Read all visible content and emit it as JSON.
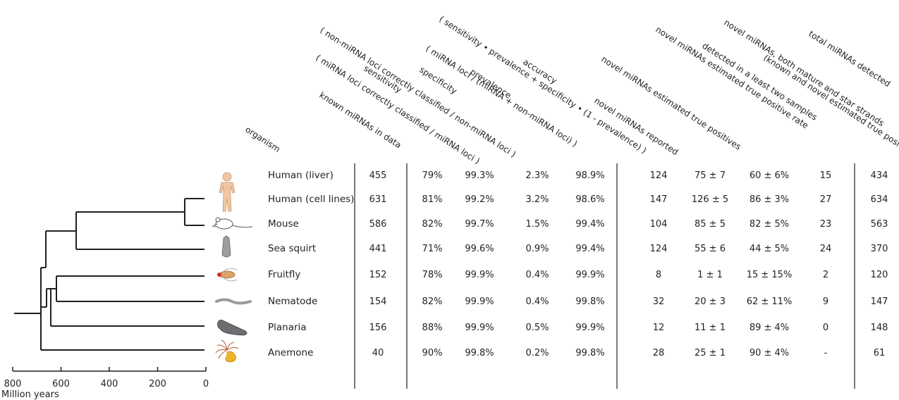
{
  "headers": [
    {
      "key": "organism",
      "lines": [
        "organism"
      ]
    },
    {
      "key": "known",
      "lines": [
        "known miRNAs in data"
      ]
    },
    {
      "key": "sensitivity",
      "lines": [
        "sensitivity",
        "( miRNA loci correctly classified / miRNA loci )"
      ]
    },
    {
      "key": "specificity",
      "lines": [
        "specificity",
        "( non-miRNA loci correctly classified / non-miRNA loci )"
      ]
    },
    {
      "key": "prevalence",
      "lines": [
        "prevalence",
        "( miRNA loci / (miRNA + non-miRNA loci) )"
      ]
    },
    {
      "key": "accuracy",
      "lines": [
        "accuracy",
        "( sensitivity • prevalence + specificity • (1 - prevalence) )"
      ]
    },
    {
      "key": "novel_reported",
      "lines": [
        "novel miRNAs reported"
      ]
    },
    {
      "key": "novel_tp",
      "lines": [
        "novel miRNAs estimated true positives"
      ]
    },
    {
      "key": "novel_tpr",
      "lines": [
        "novel miRNAs estimated true positive rate"
      ]
    },
    {
      "key": "novel_both",
      "lines": [
        "novel miRNAs, both mature and star strands",
        "detected in a least two samples"
      ]
    },
    {
      "key": "total",
      "lines": [
        "total miRNAs detected",
        "(known and novel estimated true positives)"
      ]
    }
  ],
  "rows": [
    {
      "organism": "Human (liver)",
      "icon": "human-icon",
      "known": "455",
      "sensitivity": "79%",
      "specificity": "99.3%",
      "prevalence": "2.3%",
      "accuracy": "98.9%",
      "novel_reported": "124",
      "novel_tp": "75 ± 7",
      "novel_tpr": "60 ± 6%",
      "novel_both": "15",
      "total": "434"
    },
    {
      "organism": "Human (cell lines)",
      "icon": "",
      "known": "631",
      "sensitivity": "81%",
      "specificity": "99.2%",
      "prevalence": "3.2%",
      "accuracy": "98.6%",
      "novel_reported": "147",
      "novel_tp": "126 ± 5",
      "novel_tpr": "86 ± 3%",
      "novel_both": "27",
      "total": "634"
    },
    {
      "organism": "Mouse",
      "icon": "mouse-icon",
      "known": "586",
      "sensitivity": "82%",
      "specificity": "99.7%",
      "prevalence": "1.5%",
      "accuracy": "99.4%",
      "novel_reported": "104",
      "novel_tp": "85 ± 5",
      "novel_tpr": "82 ± 5%",
      "novel_both": "23",
      "total": "563"
    },
    {
      "organism": "Sea squirt",
      "icon": "sea-squirt-icon",
      "known": "441",
      "sensitivity": "71%",
      "specificity": "99.6%",
      "prevalence": "0.9%",
      "accuracy": "99.4%",
      "novel_reported": "124",
      "novel_tp": "55 ± 6",
      "novel_tpr": "44 ± 5%",
      "novel_both": "24",
      "total": "370"
    },
    {
      "organism": "Fruitfly",
      "icon": "fruitfly-icon",
      "known": "152",
      "sensitivity": "78%",
      "specificity": "99.9%",
      "prevalence": "0.4%",
      "accuracy": "99.9%",
      "novel_reported": "8",
      "novel_tp": "1 ± 1",
      "novel_tpr": "15 ± 15%",
      "novel_both": "2",
      "total": "120"
    },
    {
      "organism": "Nematode",
      "icon": "nematode-icon",
      "known": "154",
      "sensitivity": "82%",
      "specificity": "99.9%",
      "prevalence": "0.4%",
      "accuracy": "99.8%",
      "novel_reported": "32",
      "novel_tp": "20 ± 3",
      "novel_tpr": "62 ± 11%",
      "novel_both": "9",
      "total": "147"
    },
    {
      "organism": "Planaria",
      "icon": "planaria-icon",
      "known": "156",
      "sensitivity": "88%",
      "specificity": "99.9%",
      "prevalence": "0.5%",
      "accuracy": "99.9%",
      "novel_reported": "12",
      "novel_tp": "11 ± 1",
      "novel_tpr": "89 ± 4%",
      "novel_both": "0",
      "total": "148"
    },
    {
      "organism": "Anemone",
      "icon": "anemone-icon",
      "known": "40",
      "sensitivity": "90%",
      "specificity": "99.8%",
      "prevalence": "0.2%",
      "accuracy": "99.8%",
      "novel_reported": "28",
      "novel_tp": "25 ± 1",
      "novel_tpr": "90 ± 4%",
      "novel_both": "-",
      "total": "61"
    }
  ],
  "axis": {
    "ticks": [
      "800",
      "600",
      "400",
      "200",
      "0"
    ],
    "label": "Million years"
  },
  "colors": {
    "text": "#231f20",
    "highlight": "#e46a2b"
  }
}
